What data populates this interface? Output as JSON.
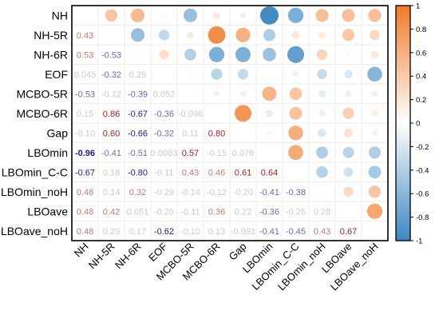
{
  "chart_data": {
    "type": "heatmap",
    "variables": [
      "NH",
      "NH-5R",
      "NH-6R",
      "EOF",
      "MCBO-5R",
      "MCBO-6R",
      "Gap",
      "LBOmin",
      "LBOmin_C-C",
      "LBOmin_noH",
      "LBOave",
      "LBOave_noH"
    ],
    "lower_labels": [
      [],
      [
        "0.43"
      ],
      [
        "0.53",
        "-0.53"
      ],
      [
        "0.045",
        "-0.32",
        "0.25"
      ],
      [
        "-0.53",
        "-0.12",
        "-0.39",
        "0.052"
      ],
      [
        "0.15",
        "0.86",
        "-0.67",
        "-0.36",
        "-0.096"
      ],
      [
        "-0.10",
        "0.60",
        "-0.66",
        "-0.32",
        "0.11",
        "0.80"
      ],
      [
        "-0.96",
        "-0.41",
        "-0.51",
        "0.0083",
        "0.57",
        "-0.15",
        "0.076"
      ],
      [
        "-0.67",
        "0.18",
        "-0.80",
        "-0.11",
        "0.43",
        "0.46",
        "0.61",
        "0.64"
      ],
      [
        "0.48",
        "0.14",
        "0.32",
        "-0.29",
        "-0.14",
        "-0.12",
        "-0.20",
        "-0.41",
        "-0.38"
      ],
      [
        "0.48",
        "0.42",
        "0.051",
        "-0.20",
        "-0.11",
        "0.36",
        "0.22",
        "-0.36",
        "-0.25",
        "0.28"
      ],
      [
        "0.48",
        "0.29",
        "0.17",
        "-0.62",
        "-0.10",
        "0.13",
        "-0.091",
        "-0.41",
        "-0.45",
        "0.43",
        "0.67"
      ]
    ],
    "value_range": [
      -1,
      1
    ],
    "colorbar_ticks": [
      "1",
      "0.8",
      "0.6",
      "0.4",
      "0.2",
      "0",
      "-0.2",
      "-0.4",
      "-0.6",
      "-0.8",
      "-1"
    ],
    "upper_shape": "circle",
    "lower_shape": "number",
    "colors": {
      "negative": "#3b87c0",
      "neutral": "#ffffff",
      "positive": "#f07b2a",
      "text_strong_negative": "#1a1a8c",
      "text_strong_positive": "#a02020"
    },
    "legend_position": "right",
    "grid": true
  }
}
